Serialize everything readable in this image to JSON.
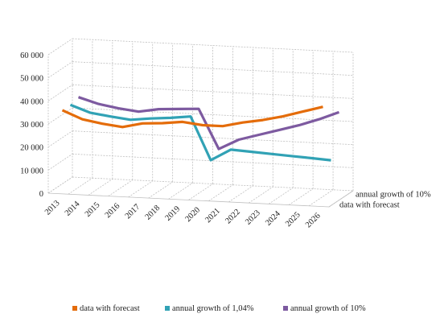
{
  "chart_data": {
    "type": "line",
    "style": "3d-line",
    "title": "",
    "xlabel": "",
    "ylabel": "",
    "categories": [
      "2013",
      "2014",
      "2015",
      "2016",
      "2017",
      "2018",
      "2019",
      "2020",
      "2021",
      "2022",
      "2023",
      "2024",
      "2025",
      "2026"
    ],
    "ylim": [
      0,
      60000
    ],
    "yticks": [
      0,
      10000,
      20000,
      30000,
      40000,
      50000,
      60000
    ],
    "ytick_labels": [
      "0",
      "10 000",
      "20 000",
      "30 000",
      "40 000",
      "50 000",
      "60 000"
    ],
    "depth_labels": [
      "data with forecast",
      "annual growth of 10%"
    ],
    "grid": true,
    "legend_position": "bottom",
    "series": [
      {
        "name": "data with forecast",
        "color": "#e46c0a",
        "depth": 0,
        "values": [
          35000,
          31500,
          30000,
          29000,
          31000,
          31500,
          32500,
          31500,
          31500,
          33500,
          35000,
          37000,
          39500,
          42000
        ]
      },
      {
        "name": "annual growth of 1,04%",
        "color": "#31a2b5",
        "depth": 1,
        "values": [
          35000,
          32000,
          30800,
          29800,
          30800,
          31500,
          32500,
          14000,
          19000,
          18500,
          18000,
          17500,
          17000,
          16500
        ]
      },
      {
        "name": "annual growth of 10%",
        "color": "#7d5aa0",
        "depth": 2,
        "values": [
          36000,
          33500,
          32000,
          31000,
          32500,
          33000,
          33500,
          16500,
          21000,
          23500,
          26000,
          28500,
          31500,
          35000
        ]
      }
    ]
  }
}
